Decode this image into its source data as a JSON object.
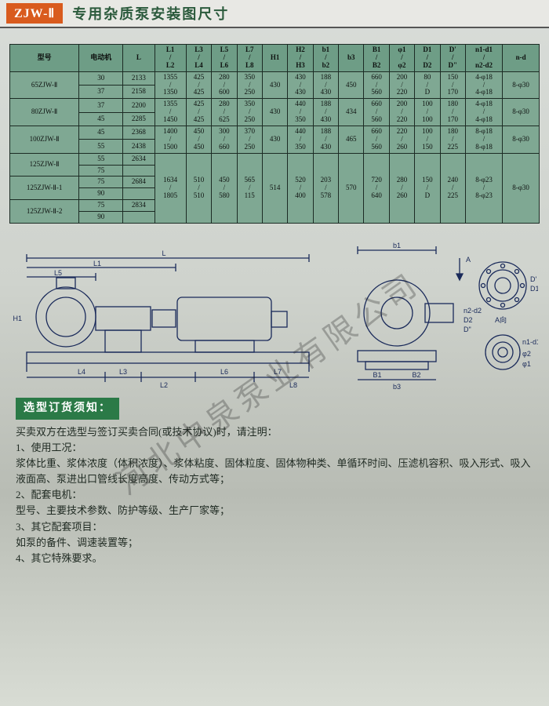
{
  "header": {
    "badge": "ZJW-Ⅱ",
    "title": "专用杂质泵安装图尺寸"
  },
  "table": {
    "columns": [
      "型号",
      "电动机",
      "L",
      "L1 / L2",
      "L3 / L4",
      "L5 / L6",
      "L7 / L8",
      "H1",
      "H2 / H3",
      "b1 / b2",
      "b3",
      "B1 / B2",
      "φ1 / φ2",
      "D1 / D2",
      "D' / D\"",
      "n1-d1 / n2-d2",
      "n-d"
    ],
    "groups": [
      {
        "model": "65ZJW-Ⅱ",
        "rows": [
          {
            "motor": "30",
            "L": "2133",
            "L12": "1355 / 1350",
            "L34": "425 / 425",
            "L56": "280 / 600",
            "L78": "350 / 250",
            "H1": "430",
            "H23": "430 / 430",
            "b12": "188 / 430",
            "b3": "450",
            "B12": "660 / 560",
            "phi12": "200 / 220",
            "D12": "80 / D",
            "Dp": "150 / 170",
            "nd12": "4-φ18 / 4-φ18",
            "nd": "8-φ30"
          },
          {
            "motor": "37",
            "L": "2158"
          }
        ]
      },
      {
        "model": "80ZJW-Ⅱ",
        "rows": [
          {
            "motor": "37",
            "L": "2200",
            "L12": "1355 / 1450",
            "L34": "425 / 425",
            "L56": "280 / 625",
            "L78": "350 / 250",
            "H1": "430",
            "H23": "440 / 350",
            "b12": "188 / 430",
            "b3": "434",
            "B12": "660 / 560",
            "phi12": "200 / 220",
            "D12": "100 / 100",
            "Dp": "180 / 170",
            "nd12": "4-φ18 / 4-φ18",
            "nd": "8-φ30"
          },
          {
            "motor": "45",
            "L": "2285"
          }
        ]
      },
      {
        "model": "100ZJW-Ⅱ",
        "rows": [
          {
            "motor": "45",
            "L": "2368",
            "L12": "1400 / 1500",
            "L34": "450 / 450",
            "L56": "300 / 660",
            "L78": "370 / 250",
            "H1": "430",
            "H23": "440 / 350",
            "b12": "188 / 430",
            "b3": "465",
            "B12": "660 / 560",
            "phi12": "220 / 260",
            "D12": "100 / 150",
            "Dp": "180 / 225",
            "nd12": "8-φ18 / 8-φ18",
            "nd": "8-φ30"
          },
          {
            "motor": "55",
            "L": "2438"
          }
        ]
      },
      {
        "model": "125ZJW-Ⅱ",
        "rows": [
          {
            "motor": "55",
            "L": "2634",
            "L12": "1634 / 1805",
            "L34": "510 / 510",
            "L56": "450 / 580",
            "L78": "565 / 115",
            "H1": "514",
            "H23": "520 / 400",
            "b12": "203 / 578",
            "b3": "570",
            "B12": "720 / 640",
            "phi12": "280 / 260",
            "D12": "150 / D",
            "Dp": "240 / 225",
            "nd12": "8-φ23 / 8-φ23",
            "nd": "8-φ30"
          },
          {
            "motor": "75",
            "L": ""
          }
        ]
      },
      {
        "model": "125ZJW-Ⅱ-1",
        "rows": [
          {
            "motor": "75",
            "L": "2684"
          },
          {
            "motor": "90",
            "L": ""
          }
        ]
      },
      {
        "model": "125ZJW-Ⅱ-2",
        "rows": [
          {
            "motor": "75",
            "L": "2834"
          },
          {
            "motor": "90",
            "L": ""
          }
        ]
      }
    ]
  },
  "diagram": {
    "stroke": "#1a2a5a",
    "labels_side": [
      "L",
      "L1",
      "L5",
      "L2",
      "L3",
      "L4",
      "L6",
      "L7",
      "L8",
      "H1"
    ],
    "labels_front": [
      "b1",
      "b3",
      "B1",
      "B2",
      "A",
      "n2-d2",
      "D2",
      "D\"",
      "D'",
      "D1",
      "A向",
      "n1-d1",
      "φ2",
      "φ1"
    ]
  },
  "notice": {
    "title": "选型订货须知：",
    "intro": "买卖双方在选型与签订买卖合同(或技术协议)时，请注明：",
    "items": [
      "1、使用工况：",
      "浆体比重、浆体浓度（体积浓度）、浆体粘度、固体粒度、固体物种类、单循环时间、压滤机容积、吸入形式、吸入液面高、泵进出口管线长度高度、传动方式等；",
      "2、配套电机：",
      "型号、主要技术参数、防护等级、生产厂家等；",
      "3、其它配套项目：",
      "如泵的备件、调速装置等；",
      "4、其它特殊要求。"
    ]
  },
  "watermark": "河北中泉泵业有限公司",
  "style": {
    "watermark_color": "rgba(30,30,30,0.28)",
    "watermark_fontsize": 40
  }
}
